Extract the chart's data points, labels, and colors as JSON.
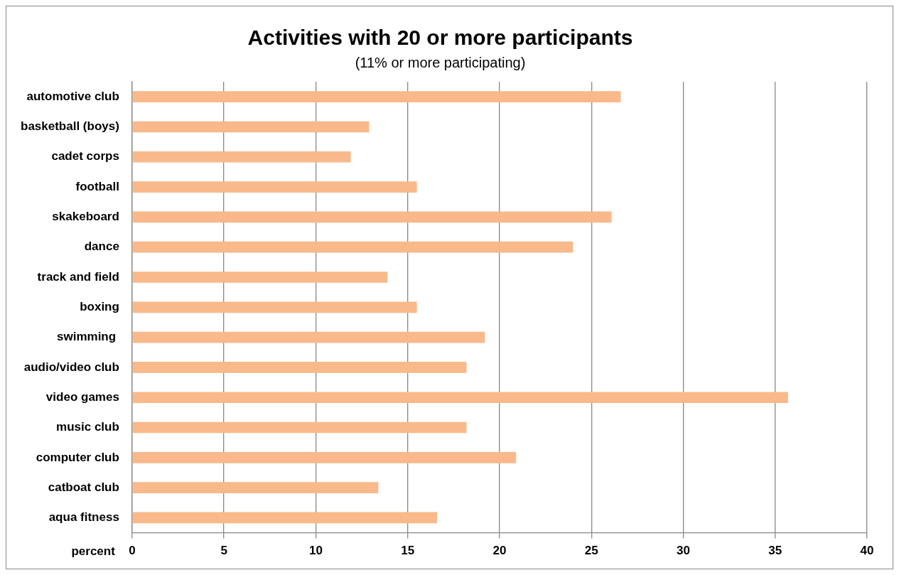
{
  "chart_data": {
    "type": "bar",
    "orientation": "horizontal",
    "title": "Activities with 20 or more participants",
    "subtitle": "(11% or more participating)",
    "xlabel": "percent",
    "categories": [
      "automotive club",
      "basketball (boys)",
      "cadet corps",
      "football",
      "skakeboard",
      "dance",
      "track and field",
      "boxing",
      "swimming ",
      "audio/video club",
      "video games",
      "music club",
      "computer club",
      "catboat club",
      "aqua fitness"
    ],
    "values": [
      26.6,
      12.9,
      11.9,
      15.5,
      26.1,
      24.0,
      13.9,
      15.5,
      19.2,
      18.2,
      35.7,
      18.2,
      20.9,
      13.4,
      16.6
    ],
    "color": "#f9b98a",
    "xlim": [
      0,
      40
    ],
    "xticks": [
      0,
      5,
      10,
      15,
      20,
      25,
      30,
      35,
      40
    ],
    "grid": "x",
    "legend": false
  }
}
